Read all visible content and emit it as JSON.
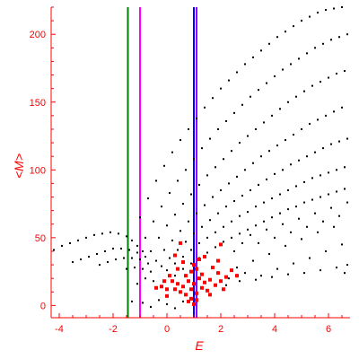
{
  "chart_data": {
    "type": "scatter",
    "title": "",
    "xlabel": "E",
    "ylabel": "<M>",
    "xlim": [
      -4.3,
      6.8
    ],
    "ylim": [
      -9,
      220
    ],
    "x_ticks": [
      -4,
      -2,
      0,
      2,
      4,
      6
    ],
    "y_ticks": [
      0,
      50,
      100,
      150,
      200
    ],
    "x_tick_labels": [
      "-4",
      "-2",
      "0",
      "2",
      "4",
      "6"
    ],
    "y_tick_labels": [
      "0",
      "50",
      "100",
      "150",
      "200"
    ],
    "grid": false,
    "legend": "none",
    "colors": {
      "axis": "#ff0000",
      "points_black": "#000000",
      "points_red": "#ff0000",
      "line_green": "#008000",
      "line_magenta": "#ff00ff",
      "line_blue": "#0000ff",
      "line_purple": "#8800ff"
    },
    "vertical_lines": [
      {
        "x": -1.45,
        "color": "#008000"
      },
      {
        "x": -1.0,
        "color": "#ff00ff"
      },
      {
        "x": 1.0,
        "color": "#0000ff"
      },
      {
        "x": 1.1,
        "color": "#8800ff"
      }
    ],
    "series": [
      {
        "color": "#000000",
        "points": [
          [
            -1.0,
            65
          ],
          [
            -0.7,
            79
          ],
          [
            -0.4,
            92
          ],
          [
            -0.1,
            103
          ],
          [
            0.2,
            113
          ],
          [
            0.5,
            122
          ],
          [
            0.8,
            130
          ],
          [
            1.1,
            138
          ],
          [
            1.4,
            146
          ],
          [
            1.7,
            153
          ],
          [
            2.0,
            160
          ],
          [
            2.3,
            166
          ],
          [
            2.6,
            172
          ],
          [
            2.9,
            178
          ],
          [
            3.2,
            183
          ],
          [
            3.5,
            188
          ],
          [
            3.8,
            193
          ],
          [
            4.1,
            198
          ],
          [
            4.4,
            202
          ],
          [
            4.7,
            206
          ],
          [
            5.0,
            210
          ],
          [
            5.3,
            213
          ],
          [
            5.6,
            216
          ],
          [
            5.9,
            218
          ],
          [
            6.2,
            219
          ],
          [
            6.5,
            220
          ],
          [
            -0.8,
            50
          ],
          [
            -0.5,
            62
          ],
          [
            -0.2,
            73
          ],
          [
            0.1,
            83
          ],
          [
            0.4,
            92
          ],
          [
            0.7,
            100
          ],
          [
            1.0,
            108
          ],
          [
            1.3,
            116
          ],
          [
            1.6,
            123
          ],
          [
            1.9,
            130
          ],
          [
            2.2,
            136
          ],
          [
            2.5,
            142
          ],
          [
            2.8,
            148
          ],
          [
            3.1,
            154
          ],
          [
            3.4,
            159
          ],
          [
            3.7,
            164
          ],
          [
            4.0,
            169
          ],
          [
            4.3,
            174
          ],
          [
            4.6,
            178
          ],
          [
            4.9,
            182
          ],
          [
            5.2,
            186
          ],
          [
            5.5,
            190
          ],
          [
            5.8,
            193
          ],
          [
            6.1,
            196
          ],
          [
            6.4,
            198
          ],
          [
            6.7,
            200
          ],
          [
            -0.6,
            40
          ],
          [
            -0.3,
            50
          ],
          [
            0.0,
            59
          ],
          [
            0.3,
            67
          ],
          [
            0.6,
            75
          ],
          [
            0.9,
            82
          ],
          [
            1.2,
            89
          ],
          [
            1.5,
            96
          ],
          [
            1.8,
            102
          ],
          [
            2.1,
            108
          ],
          [
            2.4,
            114
          ],
          [
            2.7,
            120
          ],
          [
            3.0,
            125
          ],
          [
            3.3,
            130
          ],
          [
            3.6,
            135
          ],
          [
            3.9,
            140
          ],
          [
            4.2,
            145
          ],
          [
            4.5,
            150
          ],
          [
            4.8,
            154
          ],
          [
            5.1,
            158
          ],
          [
            5.4,
            162
          ],
          [
            5.7,
            165
          ],
          [
            6.0,
            168
          ],
          [
            6.3,
            171
          ],
          [
            6.6,
            173
          ],
          [
            -0.4,
            33
          ],
          [
            -0.1,
            41
          ],
          [
            0.2,
            48
          ],
          [
            0.5,
            55
          ],
          [
            0.8,
            62
          ],
          [
            1.1,
            68
          ],
          [
            1.4,
            74
          ],
          [
            1.7,
            80
          ],
          [
            2.0,
            85
          ],
          [
            2.3,
            90
          ],
          [
            2.6,
            95
          ],
          [
            2.9,
            100
          ],
          [
            3.2,
            105
          ],
          [
            3.5,
            110
          ],
          [
            3.8,
            114
          ],
          [
            4.1,
            118
          ],
          [
            4.4,
            122
          ],
          [
            4.7,
            126
          ],
          [
            5.0,
            130
          ],
          [
            5.3,
            134
          ],
          [
            5.6,
            137
          ],
          [
            5.9,
            140
          ],
          [
            6.2,
            143
          ],
          [
            6.5,
            146
          ],
          [
            -0.2,
            29
          ],
          [
            0.1,
            35
          ],
          [
            0.4,
            41
          ],
          [
            0.7,
            47
          ],
          [
            1.0,
            53
          ],
          [
            1.3,
            58
          ],
          [
            1.6,
            63
          ],
          [
            1.9,
            68
          ],
          [
            2.2,
            73
          ],
          [
            2.5,
            77
          ],
          [
            2.8,
            81
          ],
          [
            3.1,
            85
          ],
          [
            3.4,
            89
          ],
          [
            3.7,
            93
          ],
          [
            4.0,
            97
          ],
          [
            4.3,
            100
          ],
          [
            4.6,
            104
          ],
          [
            4.9,
            107
          ],
          [
            5.2,
            110
          ],
          [
            5.5,
            113
          ],
          [
            5.8,
            116
          ],
          [
            6.1,
            119
          ],
          [
            6.4,
            121
          ],
          [
            6.7,
            123
          ],
          [
            0.0,
            26
          ],
          [
            0.3,
            31
          ],
          [
            0.6,
            36
          ],
          [
            0.9,
            41
          ],
          [
            1.2,
            46
          ],
          [
            1.5,
            50
          ],
          [
            1.8,
            54
          ],
          [
            2.1,
            58
          ],
          [
            2.4,
            62
          ],
          [
            2.7,
            66
          ],
          [
            3.0,
            69
          ],
          [
            3.3,
            73
          ],
          [
            3.6,
            76
          ],
          [
            3.9,
            79
          ],
          [
            4.2,
            82
          ],
          [
            4.5,
            85
          ],
          [
            4.8,
            88
          ],
          [
            5.1,
            91
          ],
          [
            5.4,
            94
          ],
          [
            5.7,
            96
          ],
          [
            6.0,
            98
          ],
          [
            6.3,
            100
          ],
          [
            6.6,
            102
          ],
          [
            0.3,
            22
          ],
          [
            0.6,
            27
          ],
          [
            0.9,
            31
          ],
          [
            1.2,
            35
          ],
          [
            1.5,
            39
          ],
          [
            1.8,
            43
          ],
          [
            2.1,
            47
          ],
          [
            2.4,
            50
          ],
          [
            2.7,
            53
          ],
          [
            3.0,
            56
          ],
          [
            3.3,
            59
          ],
          [
            3.6,
            62
          ],
          [
            3.9,
            65
          ],
          [
            4.2,
            68
          ],
          [
            4.5,
            71
          ],
          [
            4.8,
            73
          ],
          [
            5.1,
            76
          ],
          [
            5.4,
            78
          ],
          [
            5.7,
            80
          ],
          [
            6.0,
            82
          ],
          [
            6.3,
            84
          ],
          [
            6.6,
            86
          ],
          [
            -4.2,
            41
          ],
          [
            -3.9,
            44
          ],
          [
            -3.6,
            46
          ],
          [
            -3.3,
            48
          ],
          [
            -3.0,
            50
          ],
          [
            -2.7,
            52
          ],
          [
            -2.4,
            53
          ],
          [
            -2.1,
            54
          ],
          [
            -1.8,
            53
          ],
          [
            -1.5,
            51
          ],
          [
            -1.3,
            48
          ],
          [
            -1.1,
            44
          ],
          [
            -0.9,
            40
          ],
          [
            -3.5,
            32
          ],
          [
            -3.2,
            34
          ],
          [
            -2.9,
            36
          ],
          [
            -2.6,
            38
          ],
          [
            -2.3,
            40
          ],
          [
            -2.0,
            42
          ],
          [
            -1.7,
            42
          ],
          [
            -1.4,
            41
          ],
          [
            -1.1,
            39
          ],
          [
            -0.8,
            36
          ],
          [
            -2.5,
            30
          ],
          [
            -2.2,
            32
          ],
          [
            -1.9,
            34
          ],
          [
            -1.6,
            35
          ],
          [
            -1.3,
            35
          ],
          [
            -1.0,
            34
          ],
          [
            -0.7,
            31
          ],
          [
            -1.5,
            27
          ],
          [
            -1.2,
            28
          ],
          [
            -0.9,
            27
          ],
          [
            -0.6,
            25
          ],
          [
            -1.3,
            3
          ],
          [
            -0.9,
            2
          ],
          [
            -0.6,
            -1
          ],
          [
            -0.3,
            4
          ],
          [
            0.0,
            1
          ],
          [
            0.3,
            -2
          ],
          [
            0.6,
            3
          ],
          [
            -1.1,
            16
          ],
          [
            -0.8,
            20
          ],
          [
            -0.5,
            18
          ],
          [
            2.3,
            20
          ],
          [
            2.6,
            28
          ],
          [
            2.9,
            24
          ],
          [
            3.2,
            33
          ],
          [
            3.5,
            22
          ],
          [
            3.8,
            38
          ],
          [
            4.1,
            27
          ],
          [
            4.4,
            44
          ],
          [
            4.7,
            31
          ],
          [
            5.0,
            49
          ],
          [
            5.3,
            35
          ],
          [
            5.6,
            54
          ],
          [
            5.9,
            40
          ],
          [
            6.2,
            58
          ],
          [
            6.5,
            45
          ],
          [
            6.7,
            30
          ],
          [
            2.5,
            40
          ],
          [
            2.8,
            46
          ],
          [
            3.1,
            52
          ],
          [
            3.4,
            46
          ],
          [
            3.7,
            56
          ],
          [
            4.0,
            50
          ],
          [
            4.3,
            60
          ],
          [
            4.6,
            54
          ],
          [
            4.9,
            64
          ],
          [
            5.2,
            58
          ],
          [
            5.5,
            68
          ],
          [
            5.8,
            62
          ],
          [
            6.1,
            72
          ],
          [
            6.4,
            66
          ],
          [
            6.7,
            76
          ],
          [
            2.2,
            15
          ],
          [
            2.7,
            18
          ],
          [
            3.3,
            19
          ],
          [
            3.9,
            21
          ],
          [
            4.5,
            23
          ],
          [
            5.1,
            24
          ],
          [
            5.7,
            26
          ],
          [
            6.3,
            28
          ],
          [
            6.6,
            24
          ]
        ]
      },
      {
        "color": "#ff0000",
        "points": [
          [
            0.5,
            10
          ],
          [
            0.6,
            14
          ],
          [
            0.7,
            8
          ],
          [
            0.8,
            18
          ],
          [
            0.9,
            12
          ],
          [
            1.0,
            16
          ],
          [
            1.1,
            9
          ],
          [
            1.2,
            20
          ],
          [
            1.3,
            13
          ],
          [
            1.4,
            17
          ],
          [
            0.7,
            22
          ],
          [
            0.9,
            25
          ],
          [
            1.1,
            27
          ],
          [
            1.3,
            23
          ],
          [
            0.4,
            16
          ],
          [
            0.3,
            12
          ],
          [
            1.5,
            11
          ],
          [
            1.6,
            19
          ],
          [
            1.8,
            15
          ],
          [
            2.0,
            18
          ],
          [
            2.2,
            21
          ],
          [
            1.9,
            24
          ],
          [
            1.7,
            28
          ],
          [
            2.1,
            12
          ],
          [
            0.0,
            12
          ],
          [
            0.2,
            18
          ],
          [
            -0.2,
            14
          ],
          [
            -0.4,
            13
          ],
          [
            0.1,
            22
          ],
          [
            1.0,
            30
          ],
          [
            0.6,
            32
          ],
          [
            1.2,
            34
          ],
          [
            0.9,
            5
          ],
          [
            1.1,
            4
          ],
          [
            0.8,
            3
          ],
          [
            1.0,
            1
          ],
          [
            2.4,
            26
          ],
          [
            0.3,
            37
          ],
          [
            1.9,
            33
          ],
          [
            0.5,
            46
          ],
          [
            2.0,
            45
          ],
          [
            1.4,
            36
          ],
          [
            2.6,
            22
          ],
          [
            1.6,
            8
          ],
          [
            0.0,
            7
          ],
          [
            -0.1,
            18
          ],
          [
            0.4,
            27
          ]
        ]
      }
    ]
  }
}
